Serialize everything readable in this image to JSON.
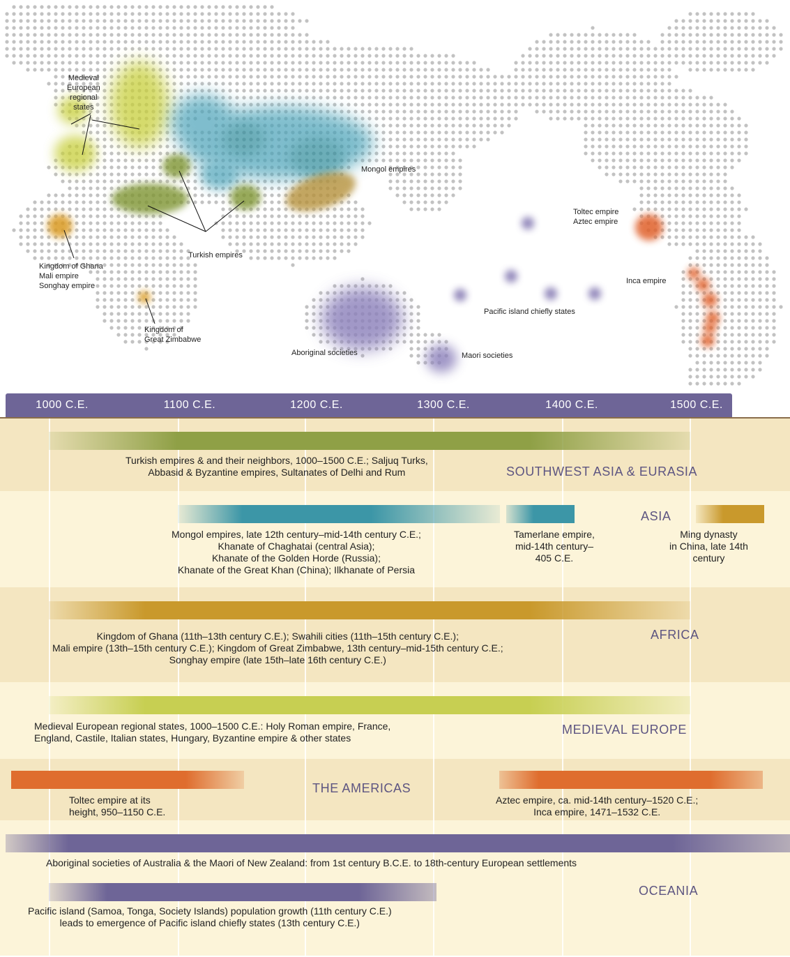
{
  "map": {
    "labels": {
      "medieval_europe": [
        "Medieval",
        "European",
        "regional",
        "states"
      ],
      "mongol": "Mongol empires",
      "turkish": "Turkish empires",
      "ghana": [
        "Kingdom of Ghana",
        "Mali empire",
        "Songhay empire"
      ],
      "zimbabwe": [
        "Kingdom of",
        "Great Zimbabwe"
      ],
      "aboriginal": "Aboriginal societies",
      "maori": "Maori societies",
      "pacific": "Pacific island chiefly states",
      "toltec": [
        "Toltec empire",
        "Aztec empire"
      ],
      "inca": "Inca empire"
    }
  },
  "axis": {
    "ticks": [
      "1000 C.E.",
      "1100 C.E.",
      "1200 C.E.",
      "1300 C.E.",
      "1400 C.E.",
      "1500 C.E."
    ]
  },
  "timeline": {
    "sw_asia": {
      "region": "SOUTHWEST ASIA & EURASIA",
      "lines": [
        "Turkish empires & and their neighbors, 1000–1500 C.E.; Saljuq Turks,",
        "Abbasid & Byzantine empires, Sultanates of Delhi and Rum"
      ]
    },
    "asia": {
      "region": "ASIA",
      "mongol": [
        "Mongol empires, late 12th century–mid-14th century C.E.;",
        "Khanate of Chaghatai (central Asia);",
        "Khanate of the Golden Horde (Russia);",
        "Khanate of the Great Khan (China); Ilkhanate of Persia"
      ],
      "tamerlane": [
        "Tamerlane empire,",
        "mid-14th century–",
        "405 C.E."
      ],
      "ming": [
        "Ming dynasty",
        "in China, late 14th",
        "century"
      ]
    },
    "africa": {
      "region": "AFRICA",
      "lines": [
        "Kingdom of Ghana (11th–13th century C.E.); Swahili cities (11th–15th century C.E.);",
        "Mali empire (13th–15th century C.E.); Kingdom of Great Zimbabwe, 13th century–mid-15th century C.E.;",
        "Songhay empire (late 15th–late 16th century C.E.)"
      ]
    },
    "europe": {
      "region": "MEDIEVAL EUROPE",
      "lines": [
        "Medieval European regional states, 1000–1500 C.E.: Holy Roman empire, France,",
        "England, Castile, Italian states, Hungary, Byzantine empire & other states"
      ]
    },
    "americas": {
      "region": "THE AMERICAS",
      "toltec": [
        "Toltec empire at its",
        "height, 950–1150 C.E."
      ],
      "aztec": [
        "Aztec empire, ca. mid-14th century–1520 C.E.;",
        "Inca empire, 1471–1532 C.E."
      ]
    },
    "oceania": {
      "region": "OCEANIA",
      "aboriginal": "Aboriginal societies of Australia & the Maori of New Zealand: from 1st century B.C.E. to 18th-century European settlements",
      "pacific": [
        "Pacific island (Samoa, Tonga, Society Islands) population growth (11th century C.E.)",
        "leads to emergence of Pacific island chiefly states (13th century C.E.)"
      ]
    }
  },
  "colors": {
    "olive": "#8fa046",
    "teal": "#3c96a7",
    "gold": "#c9992c",
    "lime": "#c7cf52",
    "orange": "#df6d2e",
    "purple": "#6e6597",
    "dot": "#c2c2c2"
  }
}
